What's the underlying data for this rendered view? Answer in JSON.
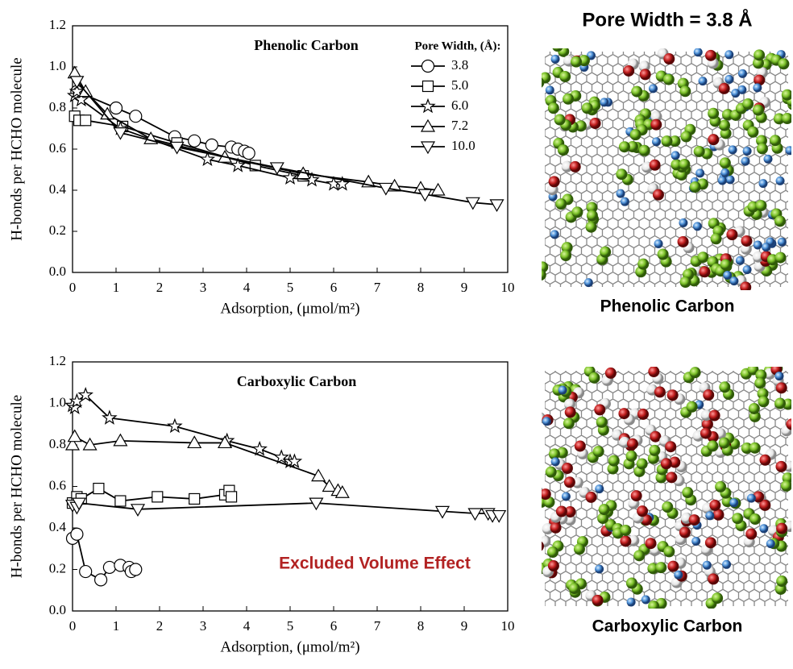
{
  "chart_data": [
    {
      "type": "line",
      "title": "Phenolic Carbon",
      "x_label": "Adsorption, (μmol/m²)",
      "y_label": "H-bonds per HCHO molecule",
      "legend_title": "Pore Width, (Å):",
      "xlim": [
        0,
        10
      ],
      "ylim": [
        0,
        1.2
      ],
      "xticks": [
        0,
        1,
        2,
        3,
        4,
        5,
        6,
        7,
        8,
        9,
        10
      ],
      "yticks": [
        {
          "value": 0,
          "label": "0.0"
        },
        0.2,
        0.4,
        0.6,
        0.8,
        {
          "value": 1,
          "label": "1.0"
        },
        1.2
      ],
      "series": [
        {
          "name": "3.8",
          "marker": "circle",
          "color": "#000000",
          "x": [
            0.1,
            1,
            1.45,
            2.35,
            2.8,
            3.2,
            3.65,
            3.8,
            3.95,
            4.05
          ],
          "values": [
            0.88,
            0.8,
            0.76,
            0.66,
            0.64,
            0.62,
            0.61,
            0.6,
            0.59,
            0.58
          ]
        },
        {
          "name": "5.0",
          "marker": "square",
          "color": "#000000",
          "x": [
            0.05,
            0.15,
            0.3,
            1.15,
            2.4,
            4.2,
            5.3
          ],
          "values": [
            0.76,
            0.74,
            0.74,
            0.71,
            0.63,
            0.52,
            0.47
          ]
        },
        {
          "name": "6.0",
          "marker": "star",
          "color": "#000000",
          "x": [
            0.05,
            0.1,
            0.2,
            1.1,
            3.1,
            3.8,
            5.0,
            5.5,
            6.0,
            6.2
          ],
          "values": [
            0.86,
            0.88,
            0.84,
            0.7,
            0.55,
            0.52,
            0.46,
            0.45,
            0.43,
            0.43
          ]
        },
        {
          "name": "7.2",
          "marker": "triangle",
          "color": "#000000",
          "x": [
            0.05,
            0.3,
            0.8,
            1.8,
            3.5,
            5.3,
            6.8,
            7.4,
            8.0,
            8.4
          ],
          "values": [
            0.97,
            0.88,
            0.77,
            0.65,
            0.56,
            0.48,
            0.44,
            0.42,
            0.41,
            0.4
          ]
        },
        {
          "name": "10.0",
          "marker": "triangle-down",
          "color": "#000000",
          "x": [
            0.1,
            1.1,
            2.4,
            4.7,
            7.2,
            8.1,
            9.2,
            9.75
          ],
          "values": [
            0.93,
            0.68,
            0.61,
            0.51,
            0.41,
            0.38,
            0.34,
            0.33
          ]
        }
      ]
    },
    {
      "type": "line",
      "title": "Carboxylic Carbon",
      "x_label": "Adsorption, (μmol/m²)",
      "y_label": "H-bonds per HCHO molecule",
      "annotation": "Excluded Volume Effect",
      "annotation_color": "#b22222",
      "xlim": [
        0,
        10
      ],
      "ylim": [
        0,
        1.2
      ],
      "xticks": [
        0,
        1,
        2,
        3,
        4,
        5,
        6,
        7,
        8,
        9,
        10
      ],
      "yticks": [
        {
          "value": 0,
          "label": "0.0"
        },
        0.2,
        0.4,
        0.6,
        0.8,
        {
          "value": 1,
          "label": "1.0"
        },
        1.2
      ],
      "series": [
        {
          "marker": "circle",
          "color": "#000000",
          "x": [
            0,
            0.1,
            0.3,
            0.65,
            0.85,
            1.1,
            1.3,
            1.35,
            1.45
          ],
          "values": [
            0.35,
            0.37,
            0.19,
            0.15,
            0.21,
            0.22,
            0.21,
            0.19,
            0.2
          ]
        },
        {
          "marker": "square",
          "color": "#000000",
          "x": [
            0,
            0.1,
            0.2,
            0.6,
            1.1,
            1.95,
            2.8,
            3.5,
            3.6,
            3.65
          ],
          "values": [
            0.52,
            0.55,
            0.54,
            0.59,
            0.53,
            0.55,
            0.54,
            0.56,
            0.58,
            0.55
          ]
        },
        {
          "marker": "star",
          "color": "#000000",
          "x": [
            0,
            0.05,
            0.1,
            0.3,
            0.85,
            2.35,
            3.55,
            4.3,
            4.8,
            5.0,
            5.1
          ],
          "values": [
            0.99,
            0.98,
            1.01,
            1.04,
            0.93,
            0.89,
            0.82,
            0.78,
            0.74,
            0.72,
            0.72
          ]
        },
        {
          "marker": "triangle",
          "color": "#000000",
          "x": [
            0,
            0.05,
            0.4,
            1.1,
            2.8,
            3.5,
            5.65,
            5.9,
            6.1,
            6.2
          ],
          "values": [
            0.8,
            0.84,
            0.8,
            0.82,
            0.81,
            0.81,
            0.65,
            0.6,
            0.58,
            0.57
          ]
        },
        {
          "marker": "triangle-down",
          "color": "#000000",
          "x": [
            0,
            0.1,
            0.15,
            1.5,
            5.6,
            8.5,
            9.25,
            9.55,
            9.65,
            9.8
          ],
          "values": [
            0.51,
            0.5,
            0.52,
            0.49,
            0.52,
            0.48,
            0.47,
            0.47,
            0.46,
            0.46
          ]
        }
      ]
    }
  ],
  "images": {
    "title": "Pore Width = 3.8 Å",
    "captions": [
      "Phenolic Carbon",
      "Carboxylic Carbon"
    ]
  }
}
